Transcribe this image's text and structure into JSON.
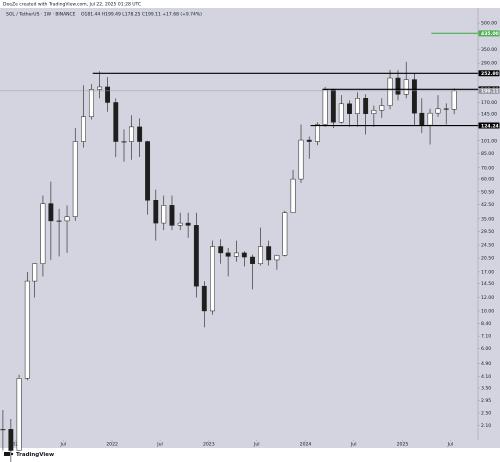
{
  "chart_data": {
    "type": "candlestick",
    "credit": "DeeZe created with TradingView.com, Jul 22, 2025 01:28 UTC",
    "title": "SOL / TetherUS · 1W · BINANCE",
    "readout": "O181.44 H199.49 L178.25 C199.11 +17.68 (+9.74%)",
    "brand": "TradingView",
    "log": true,
    "grid": false,
    "up_color": "#ffffff",
    "down_color": "#1e1e1e",
    "wick_color": "#1e1e1e",
    "xlim": [
      "2020-11-04",
      "2025-10-13"
    ],
    "xticks": [
      {
        "value": "2021-01-01",
        "label": "2021"
      },
      {
        "value": "2021-07-01",
        "label": "Jul"
      },
      {
        "value": "2022-01-01",
        "label": "2022"
      },
      {
        "value": "2022-07-01",
        "label": "Jul"
      },
      {
        "value": "2023-01-01",
        "label": "2023"
      },
      {
        "value": "2023-07-01",
        "label": "Jul"
      },
      {
        "value": "2024-01-01",
        "label": "2024"
      },
      {
        "value": "2024-07-01",
        "label": "Jul"
      },
      {
        "value": "2025-01-01",
        "label": "2025"
      },
      {
        "value": "2025-07-01",
        "label": "Jul"
      }
    ],
    "ylim": [
      1.73,
      614
    ],
    "yticks": [
      {
        "value": 500,
        "label": "500.00"
      },
      {
        "value": 350,
        "label": "350.00"
      },
      {
        "value": 290,
        "label": "290.00"
      },
      {
        "value": 170,
        "label": "170.00"
      },
      {
        "value": 145,
        "label": "145.00"
      },
      {
        "value": 101,
        "label": "101.00"
      },
      {
        "value": 85,
        "label": "85.00"
      },
      {
        "value": 70,
        "label": "70.00"
      },
      {
        "value": 60,
        "label": "60.00"
      },
      {
        "value": 50.5,
        "label": "50.50"
      },
      {
        "value": 42.5,
        "label": "42.50"
      },
      {
        "value": 35,
        "label": "35.00"
      },
      {
        "value": 29.5,
        "label": "29.50"
      },
      {
        "value": 24.5,
        "label": "24.50"
      },
      {
        "value": 20.5,
        "label": "20.50"
      },
      {
        "value": 17,
        "label": "17.00"
      },
      {
        "value": 14.5,
        "label": "14.50"
      },
      {
        "value": 12,
        "label": "12.00"
      },
      {
        "value": 10,
        "label": "10.00"
      },
      {
        "value": 8.4,
        "label": "8.40"
      },
      {
        "value": 7.1,
        "label": "7.10"
      },
      {
        "value": 6,
        "label": "6.00"
      },
      {
        "value": 4.9,
        "label": "4.90"
      },
      {
        "value": 4.1,
        "label": "4.10"
      },
      {
        "value": 3.5,
        "label": "3.50"
      },
      {
        "value": 2.95,
        "label": "2.95"
      },
      {
        "value": 2.5,
        "label": "2.50"
      },
      {
        "value": 2.1,
        "label": "2.10"
      }
    ],
    "levels": [
      {
        "value": 435,
        "label": "435.00",
        "color": "#4caf50",
        "from": "2025-04-20"
      },
      {
        "value": 252.8,
        "label": "252.80",
        "color": "#000000",
        "from": "2021-10-20"
      },
      {
        "value": 203.29,
        "label": "203.29",
        "color": "#000000",
        "from": "2024-03-05"
      },
      {
        "value": 199.11,
        "label": "199.11",
        "color": "#9598a1",
        "from": "2020-11-04"
      },
      {
        "value": 124.24,
        "label": "124.24",
        "color": "#000000",
        "from": "2024-01-20"
      }
    ],
    "x": [
      "2020-11-15",
      "2020-12-15",
      "2021-01-15",
      "2021-02-15",
      "2021-03-15",
      "2021-04-15",
      "2021-05-15",
      "2021-06-15",
      "2021-07-15",
      "2021-08-15",
      "2021-09-15",
      "2021-10-15",
      "2021-11-15",
      "2021-12-15",
      "2022-01-15",
      "2022-02-15",
      "2022-03-15",
      "2022-04-15",
      "2022-05-15",
      "2022-06-15",
      "2022-07-15",
      "2022-08-15",
      "2022-09-15",
      "2022-10-15",
      "2022-11-15",
      "2022-12-15",
      "2023-01-15",
      "2023-02-15",
      "2023-03-15",
      "2023-04-15",
      "2023-05-15",
      "2023-06-15",
      "2023-07-15",
      "2023-08-15",
      "2023-09-15",
      "2023-10-15",
      "2023-11-15",
      "2023-12-15",
      "2024-01-15",
      "2024-02-15",
      "2024-03-15",
      "2024-04-15",
      "2024-05-15",
      "2024-06-15",
      "2024-07-15",
      "2024-08-15",
      "2024-09-15",
      "2024-10-15",
      "2024-11-15",
      "2024-12-15",
      "2025-01-15",
      "2025-02-15",
      "2025-03-15",
      "2025-04-15",
      "2025-05-15",
      "2025-06-15",
      "2025-07-15"
    ],
    "open": [
      2.0,
      2.0,
      1.5,
      4.0,
      15,
      19,
      43,
      34,
      34,
      36,
      100,
      140,
      203,
      210,
      170,
      100,
      100,
      122,
      100,
      45,
      33,
      42,
      32,
      33,
      32,
      14,
      10,
      24,
      22,
      21,
      22,
      20.8,
      19,
      24,
      20,
      21.3,
      38,
      60,
      102,
      100,
      126,
      202,
      130,
      167,
      146,
      180,
      146,
      153,
      163,
      237,
      190,
      232,
      147,
      125,
      147,
      156,
      155
    ],
    "high": [
      2.6,
      2.3,
      4.2,
      17,
      19,
      48,
      58,
      40,
      42,
      120,
      215,
      218,
      260,
      240,
      180,
      118,
      143,
      137,
      101,
      52,
      48,
      48,
      38,
      38,
      38,
      15,
      26,
      26.5,
      23.5,
      26,
      22.5,
      21.5,
      31,
      26,
      21.5,
      39,
      68,
      126,
      107,
      130,
      210,
      205,
      188,
      175,
      195,
      190,
      163,
      180,
      265,
      264,
      295,
      252,
      180,
      156,
      188,
      168,
      206
    ],
    "low": [
      1.5,
      1.2,
      1.5,
      3.9,
      12,
      16,
      20,
      21,
      22,
      34,
      92,
      135,
      180,
      150,
      81,
      76,
      78,
      81,
      37,
      26,
      30,
      30,
      30,
      27,
      12,
      8,
      9.5,
      19,
      16,
      19.5,
      18.3,
      13.4,
      18.5,
      18.5,
      17.5,
      21,
      38,
      57,
      79,
      95,
      122,
      120,
      128,
      122,
      122,
      110,
      122,
      138,
      155,
      175,
      180,
      125,
      112,
      96,
      140,
      126,
      145
    ],
    "close": [
      2.0,
      1.5,
      4.0,
      15,
      19,
      43,
      34,
      34,
      36,
      100,
      140,
      203,
      210,
      170,
      100,
      100,
      122,
      100,
      45,
      33,
      42,
      32,
      33,
      32,
      14,
      10,
      24,
      22,
      21,
      22,
      20.8,
      19,
      24,
      20,
      21.3,
      38,
      60,
      102,
      100,
      126,
      202,
      130,
      167,
      146,
      180,
      146,
      153,
      163,
      237,
      190,
      232,
      147,
      125,
      147,
      156,
      155,
      199.11
    ]
  }
}
